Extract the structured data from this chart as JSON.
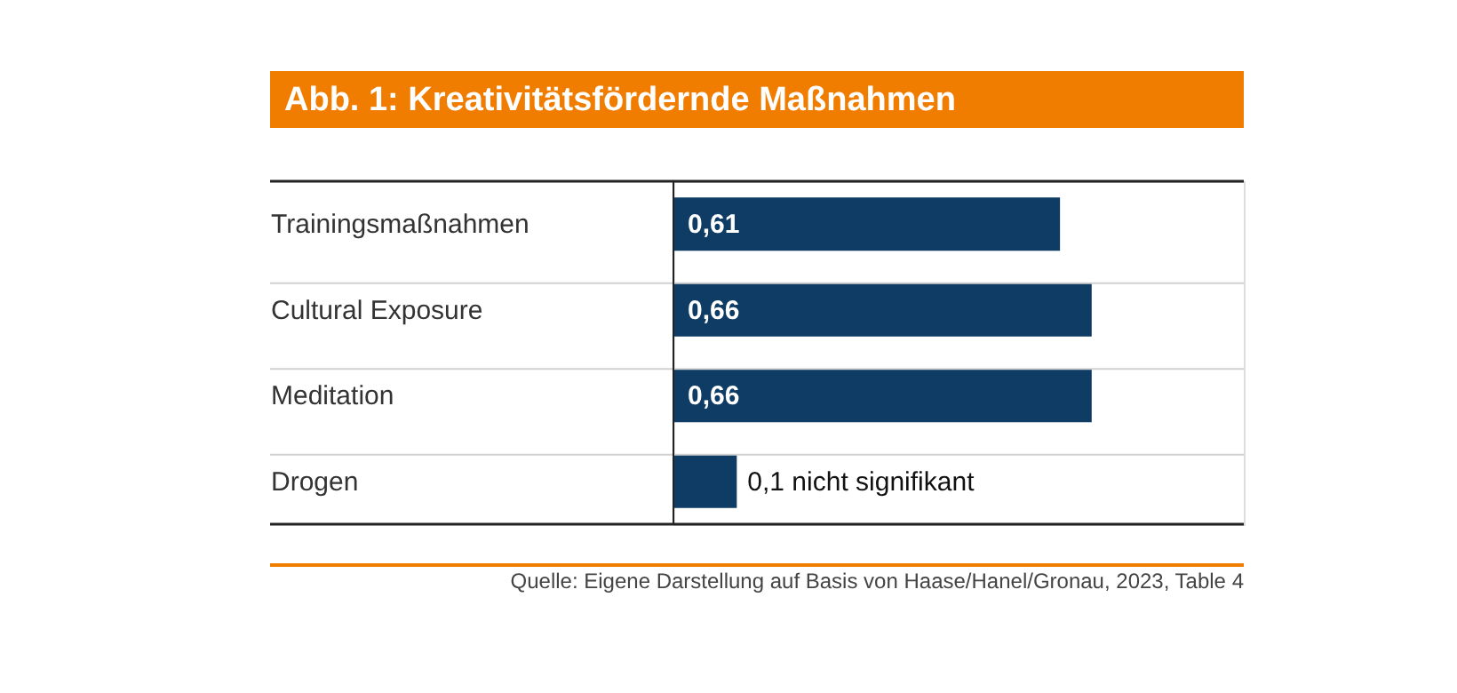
{
  "chart_data": {
    "type": "bar",
    "orientation": "horizontal",
    "title": "Abb. 1: Kreativitätsfördernde Maßnahmen",
    "categories": [
      "Trainingsmaßnahmen",
      "Cultural Exposure",
      "Meditation",
      "Drogen"
    ],
    "values": [
      0.61,
      0.66,
      0.66,
      0.1
    ],
    "value_labels": [
      "0,61",
      "0,66",
      "0,66",
      "0,1 nicht signifikant"
    ],
    "color": "#0e3c64",
    "xlim": [
      0,
      0.9
    ],
    "grid": "y",
    "annotations": [
      "Quelle: Eigene Darstellung auf Basis von Haase/Hanel/Gronau, 2023, Table 4"
    ]
  }
}
